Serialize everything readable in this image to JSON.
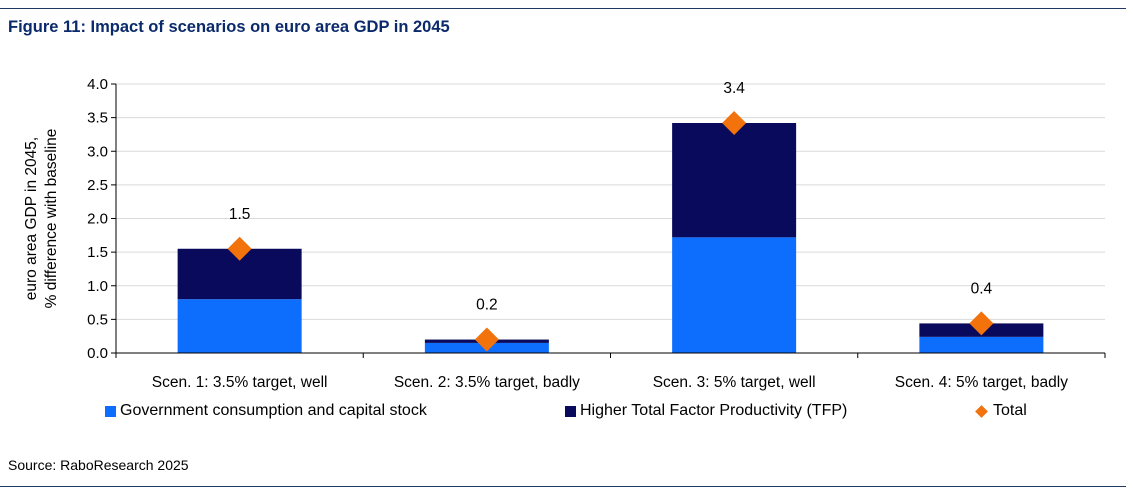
{
  "figure": {
    "title": "Figure 11: Impact of scenarios on euro area GDP in 2045",
    "source": "Source: RaboResearch 2025"
  },
  "colors": {
    "accent_rule": "#1f3864",
    "title": "#0b2a6b",
    "government": "#0d6efd",
    "tfp": "#0a0a5c",
    "total": "#f2720c",
    "grid": "#d9d9d9"
  },
  "chart_data": {
    "type": "bar",
    "stacked": true,
    "categories": [
      "Scen. 1: 3.5% target, well",
      "Scen. 2: 3.5% target, badly",
      "Scen. 3: 5% target, well",
      "Scen. 4: 5% target, badly"
    ],
    "series": [
      {
        "name": "Government consumption and capital stock",
        "kind": "bar",
        "color": "#0d6efd",
        "values": [
          0.8,
          0.15,
          1.72,
          0.24
        ]
      },
      {
        "name": "Higher Total Factor Productivity (TFP)",
        "kind": "bar",
        "color": "#0a0a5c",
        "values": [
          0.75,
          0.05,
          1.7,
          0.2
        ]
      },
      {
        "name": "Total",
        "kind": "marker",
        "marker": "diamond",
        "color": "#f2720c",
        "values": [
          1.55,
          0.2,
          3.42,
          0.44
        ]
      }
    ],
    "data_labels": [
      "1.5",
      "0.2",
      "3.4",
      "0.4"
    ],
    "ylabel": [
      "euro area GDP in 2045,",
      "% difference with baseline"
    ],
    "ylim": [
      0,
      4
    ],
    "yticks": [
      "0.0",
      "0.5",
      "1.0",
      "1.5",
      "2.0",
      "2.5",
      "3.0",
      "3.5",
      "4.0"
    ],
    "grid": true,
    "legend_position": "bottom"
  }
}
